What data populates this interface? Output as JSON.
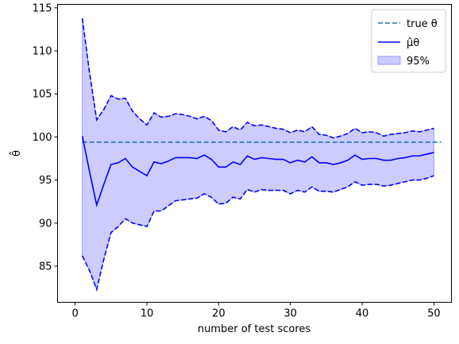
{
  "chart_data": {
    "type": "line",
    "xlabel": "number of test scores",
    "ylabel": "θ̂",
    "xlim": [
      -2.45,
      52.45
    ],
    "ylim": [
      80.8,
      115.4
    ],
    "xticks": [
      0,
      10,
      20,
      30,
      40,
      50
    ],
    "yticks": [
      85,
      90,
      95,
      100,
      105,
      110,
      115
    ],
    "grid": false,
    "legend_position": "top-right",
    "true_theta": 99.4,
    "x": [
      1,
      2,
      3,
      4,
      5,
      6,
      7,
      8,
      9,
      10,
      11,
      12,
      13,
      14,
      15,
      16,
      17,
      18,
      19,
      20,
      21,
      22,
      23,
      24,
      25,
      26,
      27,
      28,
      29,
      30,
      31,
      32,
      33,
      34,
      35,
      36,
      37,
      38,
      39,
      40,
      41,
      42,
      43,
      44,
      45,
      46,
      47,
      48,
      49,
      50
    ],
    "estimate": [
      100.1,
      96.0,
      92.1,
      94.5,
      96.8,
      97.0,
      97.5,
      96.5,
      96.0,
      95.5,
      97.1,
      96.9,
      97.2,
      97.6,
      97.6,
      97.6,
      97.5,
      97.9,
      97.4,
      96.5,
      96.5,
      97.1,
      96.8,
      97.8,
      97.4,
      97.6,
      97.5,
      97.4,
      97.4,
      97.0,
      97.3,
      97.1,
      97.7,
      97.0,
      97.0,
      96.8,
      97.0,
      97.3,
      97.9,
      97.4,
      97.5,
      97.5,
      97.3,
      97.3,
      97.5,
      97.6,
      97.8,
      97.8,
      98.0,
      98.2
    ],
    "upper": [
      113.8,
      107.5,
      102.0,
      103.2,
      104.8,
      104.4,
      104.5,
      103.0,
      102.1,
      101.4,
      102.8,
      102.3,
      102.4,
      102.7,
      102.6,
      102.4,
      102.1,
      102.4,
      101.9,
      100.8,
      100.6,
      101.2,
      100.8,
      101.7,
      101.3,
      101.4,
      101.2,
      101.0,
      100.9,
      100.5,
      100.8,
      100.6,
      101.2,
      100.3,
      100.2,
      99.9,
      100.1,
      100.4,
      101.0,
      100.5,
      100.6,
      100.5,
      100.1,
      100.3,
      100.4,
      100.5,
      100.7,
      100.6,
      100.8,
      101.0
    ],
    "lower": [
      86.2,
      84.5,
      82.3,
      85.8,
      88.9,
      89.6,
      90.5,
      90.0,
      89.8,
      89.6,
      91.4,
      91.4,
      92.0,
      92.6,
      92.7,
      92.8,
      92.9,
      93.4,
      93.0,
      92.2,
      92.3,
      93.0,
      92.8,
      93.9,
      93.6,
      93.9,
      93.8,
      93.8,
      93.8,
      93.4,
      93.8,
      93.6,
      94.2,
      93.7,
      93.7,
      93.6,
      93.9,
      94.2,
      94.8,
      94.4,
      94.5,
      94.5,
      94.3,
      94.4,
      94.6,
      94.8,
      95.0,
      95.0,
      95.2,
      95.5
    ],
    "colors": {
      "true_line": "#1f77b4",
      "estimate_line": "#0000ff",
      "band_fill": "#ccccff",
      "band_edge": "#9999ff"
    },
    "legend": [
      {
        "key": "true",
        "label": "true θ"
      },
      {
        "key": "estimate",
        "label": "μ̂θ"
      },
      {
        "key": "band",
        "label": "95%"
      }
    ]
  }
}
